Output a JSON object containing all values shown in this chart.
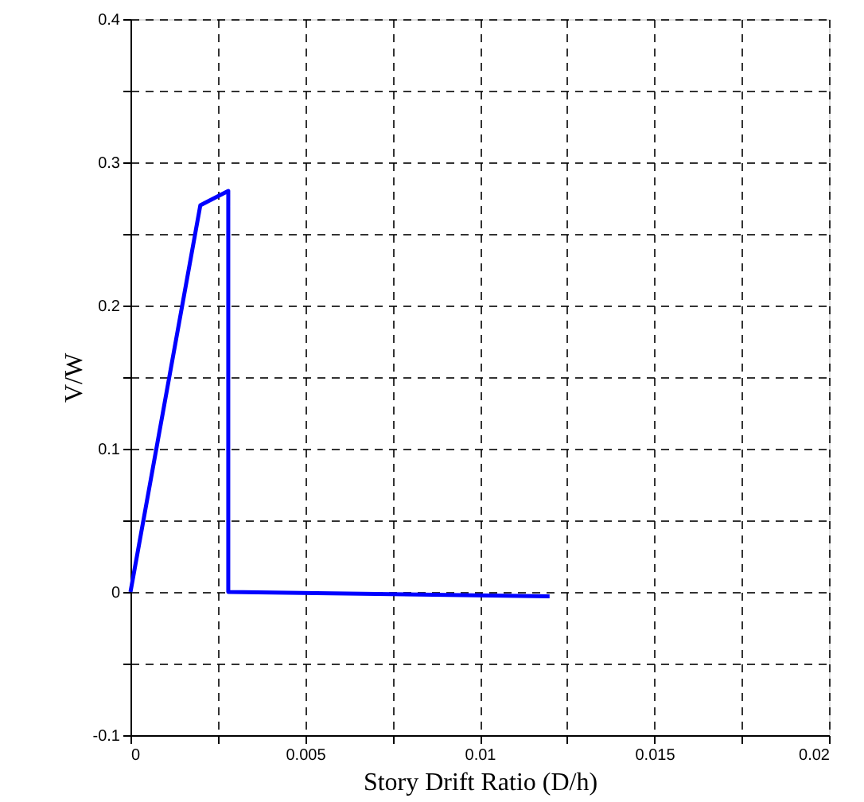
{
  "chart_data": {
    "type": "line",
    "xlabel": "Story Drift Ratio (D/h)",
    "ylabel": "V/W",
    "x": [
      0,
      0.002,
      0.0028,
      0.0028,
      0.012
    ],
    "series": [
      {
        "color": "#0000ff",
        "values": [
          0,
          0.27,
          0.28,
          0,
          -0.003
        ]
      }
    ],
    "xlim": [
      0,
      0.02
    ],
    "ylim": [
      -0.1,
      0.4
    ],
    "xticks": [
      0,
      {
        "value": 0.0025,
        "label": null
      },
      0.005,
      {
        "value": 0.0075,
        "label": null
      },
      0.01,
      {
        "value": 0.0125,
        "label": null
      },
      0.015,
      {
        "value": 0.0175,
        "label": null
      },
      0.02
    ],
    "yticks": [
      -0.1,
      {
        "value": -0.05,
        "label": null
      },
      0,
      {
        "value": 0.05,
        "label": null
      },
      0.1,
      {
        "value": 0.15,
        "label": null
      },
      0.2,
      {
        "value": 0.25,
        "label": null
      },
      0.3,
      {
        "value": 0.35,
        "label": null
      },
      0.4
    ],
    "grid": true,
    "marker": "none",
    "line_style": "solid"
  }
}
